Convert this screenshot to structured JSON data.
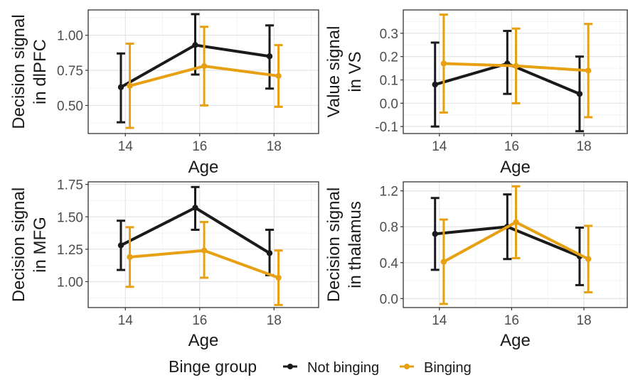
{
  "colors": {
    "not_binging": "#1a1a1a",
    "binging": "#E6A012",
    "panel_border": "#333333",
    "grid_major": "#e4e4e4",
    "grid_minor": "#f3f3f3"
  },
  "legend": {
    "title": "Binge group",
    "items": [
      {
        "label": "Not binging",
        "color": "#1a1a1a"
      },
      {
        "label": "Binging",
        "color": "#E6A012"
      }
    ]
  },
  "chart_data": [
    {
      "type": "line",
      "ylabel": [
        "Decision signal",
        "in dlPFC"
      ],
      "xlabel": "Age",
      "x": [
        14,
        16,
        18
      ],
      "xticks": [
        "14",
        "16",
        "18"
      ],
      "xlim": [
        13,
        19.2
      ],
      "ylim": [
        0.3,
        1.18
      ],
      "yticks": [
        0.5,
        0.75,
        1.0
      ],
      "ytick_labels": [
        "0.50",
        "0.75",
        "1.00"
      ],
      "series": [
        {
          "name": "Not binging",
          "values": [
            0.63,
            0.93,
            0.85
          ],
          "lower": [
            0.38,
            0.72,
            0.62
          ],
          "upper": [
            0.87,
            1.15,
            1.07
          ]
        },
        {
          "name": "Binging",
          "values": [
            0.64,
            0.78,
            0.71
          ],
          "lower": [
            0.34,
            0.5,
            0.49
          ],
          "upper": [
            0.94,
            1.06,
            0.93
          ]
        }
      ]
    },
    {
      "type": "line",
      "ylabel": [
        "Value signal",
        "in VS"
      ],
      "xlabel": "Age",
      "x": [
        14,
        16,
        18
      ],
      "xticks": [
        "14",
        "16",
        "18"
      ],
      "xlim": [
        13,
        19.2
      ],
      "ylim": [
        -0.13,
        0.4
      ],
      "yticks": [
        -0.1,
        0.0,
        0.1,
        0.2,
        0.3
      ],
      "ytick_labels": [
        "-0.1",
        "0.0",
        "0.1",
        "0.2",
        "0.3"
      ],
      "series": [
        {
          "name": "Not binging",
          "values": [
            0.08,
            0.17,
            0.04
          ],
          "lower": [
            -0.1,
            0.04,
            -0.12
          ],
          "upper": [
            0.26,
            0.31,
            0.2
          ]
        },
        {
          "name": "Binging",
          "values": [
            0.17,
            0.16,
            0.14
          ],
          "lower": [
            -0.04,
            0.0,
            -0.06
          ],
          "upper": [
            0.38,
            0.32,
            0.34
          ]
        }
      ]
    },
    {
      "type": "line",
      "ylabel": [
        "Decision signal",
        "in MFG"
      ],
      "xlabel": "Age",
      "x": [
        14,
        16,
        18
      ],
      "xticks": [
        "14",
        "16",
        "18"
      ],
      "xlim": [
        13,
        19.2
      ],
      "ylim": [
        0.8,
        1.77
      ],
      "yticks": [
        1.0,
        1.25,
        1.5,
        1.75
      ],
      "ytick_labels": [
        "1.00",
        "1.25",
        "1.50",
        "1.75"
      ],
      "series": [
        {
          "name": "Not binging",
          "values": [
            1.28,
            1.57,
            1.22
          ],
          "lower": [
            1.09,
            1.4,
            1.05
          ],
          "upper": [
            1.47,
            1.73,
            1.4
          ]
        },
        {
          "name": "Binging",
          "values": [
            1.19,
            1.24,
            1.03
          ],
          "lower": [
            0.96,
            1.03,
            0.82
          ],
          "upper": [
            1.42,
            1.46,
            1.24
          ]
        }
      ]
    },
    {
      "type": "line",
      "ylabel": [
        "Decision signal",
        "in thalamus"
      ],
      "xlabel": "Age",
      "x": [
        14,
        16,
        18
      ],
      "xticks": [
        "14",
        "16",
        "18"
      ],
      "xlim": [
        13,
        19.2
      ],
      "ylim": [
        -0.1,
        1.3
      ],
      "yticks": [
        0.0,
        0.4,
        0.8,
        1.2
      ],
      "ytick_labels": [
        "0.0",
        "0.4",
        "0.8",
        "1.2"
      ],
      "series": [
        {
          "name": "Not binging",
          "values": [
            0.72,
            0.8,
            0.47
          ],
          "lower": [
            0.32,
            0.44,
            0.15
          ],
          "upper": [
            1.12,
            1.16,
            0.79
          ]
        },
        {
          "name": "Binging",
          "values": [
            0.41,
            0.85,
            0.44
          ],
          "lower": [
            -0.06,
            0.45,
            0.07
          ],
          "upper": [
            0.88,
            1.25,
            0.81
          ]
        }
      ]
    }
  ]
}
